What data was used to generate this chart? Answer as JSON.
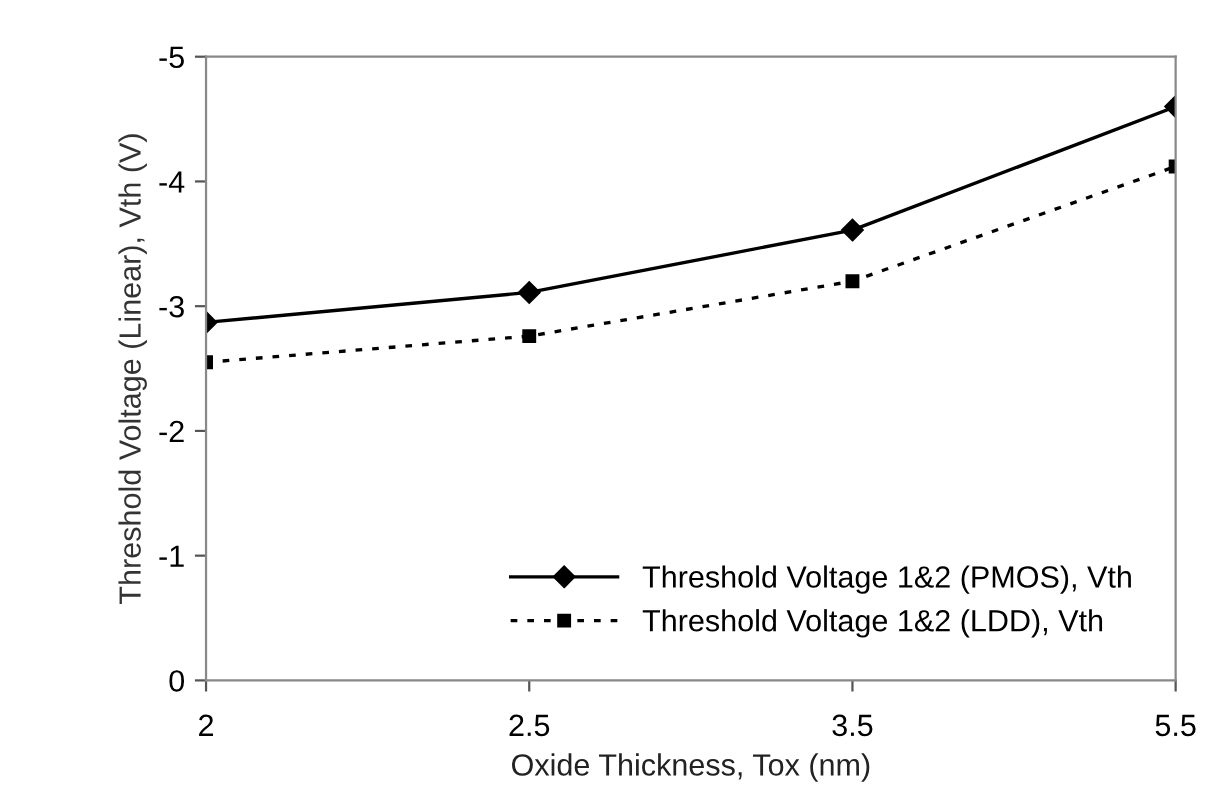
{
  "chart_data": {
    "type": "line",
    "xlabel": "Oxide Thickness, Tox (nm)",
    "ylabel": "Threshold Voltage (Linear), Vth (V)",
    "categories": [
      "2",
      "2.5",
      "3.5",
      "5.5"
    ],
    "series": [
      {
        "name": "Threshold Voltage 1&2 (PMOS), Vth",
        "color": "#000000",
        "values": [
          -2.87,
          -3.11,
          -3.61,
          -4.6
        ],
        "marker": "diamond",
        "line_style": "solid"
      },
      {
        "name": "Threshold Voltage 1&2 (LDD), Vth",
        "color": "#000000",
        "values": [
          -2.55,
          -2.76,
          -3.2,
          -4.12
        ],
        "marker": "square",
        "line_style": "dotted"
      }
    ],
    "ylim": [
      0,
      -5
    ],
    "yticks": [
      {
        "value": 0,
        "label": "0"
      },
      {
        "value": -1,
        "label": "-1"
      },
      {
        "value": -2,
        "label": "-2"
      },
      {
        "value": -3,
        "label": "-3"
      },
      {
        "value": -4,
        "label": "-4"
      },
      {
        "value": -5,
        "label": "-5"
      }
    ],
    "grid": false,
    "legend": "bottom right"
  }
}
